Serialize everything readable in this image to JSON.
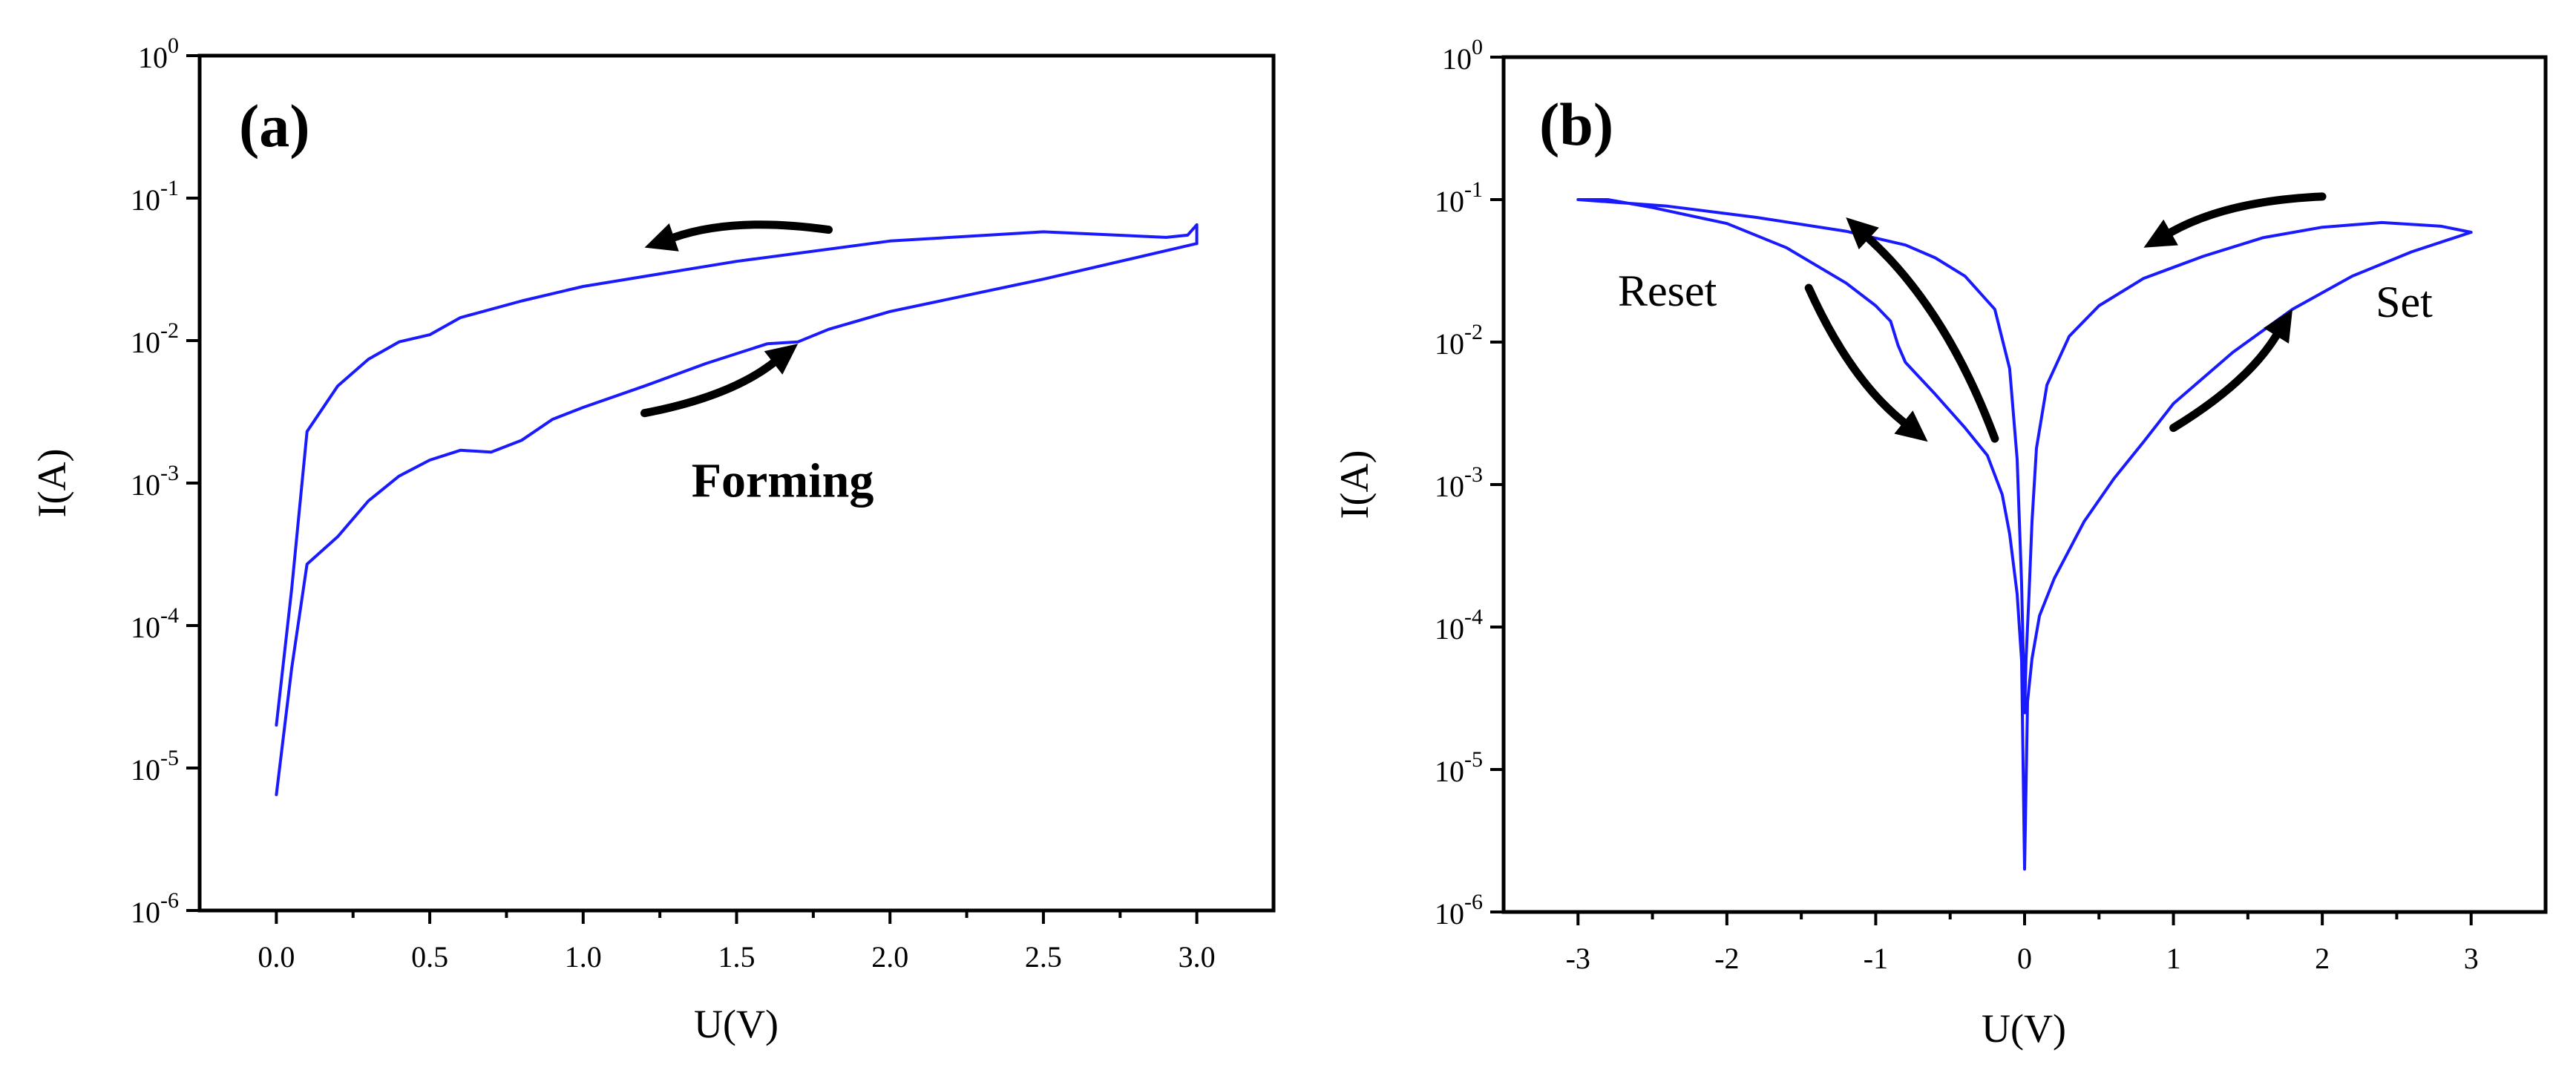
{
  "colors": {
    "curve": "#1a1aff",
    "axis": "#000000",
    "background": "#ffffff"
  },
  "chart_data": [
    {
      "id": "a",
      "type": "line",
      "panel_label": "(a)",
      "xlabel": "U(V)",
      "ylabel": "I(A)",
      "yscale": "log",
      "xlim": [
        -0.25,
        3.25
      ],
      "ylim": [
        1e-06,
        1
      ],
      "x_ticks": [
        0.0,
        0.5,
        1.0,
        1.5,
        2.0,
        2.5,
        3.0
      ],
      "x_tick_labels": [
        "0.0",
        "0.5",
        "1.0",
        "1.5",
        "2.0",
        "2.5",
        "3.0"
      ],
      "y_ticks": [
        {
          "value": 1,
          "base": "10",
          "exp": "0"
        },
        {
          "value": 0.1,
          "base": "10",
          "exp": "-1"
        },
        {
          "value": 0.01,
          "base": "10",
          "exp": "-2"
        },
        {
          "value": 0.001,
          "base": "10",
          "exp": "-3"
        },
        {
          "value": 0.0001,
          "base": "10",
          "exp": "-4"
        },
        {
          "value": 1e-05,
          "base": "10",
          "exp": "-5"
        },
        {
          "value": 1e-06,
          "base": "10",
          "exp": "-6"
        }
      ],
      "annotations": [
        {
          "text": "Forming",
          "x": 1.65,
          "y": 0.0008,
          "style": "bold"
        }
      ],
      "arrows": [
        {
          "name": "sweep-back-arrow",
          "from": [
            1.8,
            0.06
          ],
          "to": [
            1.2,
            0.045
          ]
        },
        {
          "name": "sweep-forward-arrow",
          "from": [
            1.2,
            0.0031
          ],
          "to": [
            1.7,
            0.0095
          ]
        }
      ],
      "series": [
        {
          "name": "forward sweep",
          "x": [
            0.0,
            0.05,
            0.1,
            0.2,
            0.3,
            0.4,
            0.5,
            0.6,
            0.7,
            0.8,
            0.9,
            1.0,
            1.2,
            1.4,
            1.6,
            1.7,
            1.8,
            2.0,
            2.5,
            3.0
          ],
          "y": [
            6.5e-06,
            5e-05,
            0.00027,
            0.00042,
            0.00075,
            0.00112,
            0.00145,
            0.0017,
            0.00165,
            0.002,
            0.0028,
            0.0034,
            0.0048,
            0.0069,
            0.0095,
            0.0098,
            0.012,
            0.016,
            0.027,
            0.048
          ]
        },
        {
          "name": "reverse sweep",
          "x": [
            3.0,
            3.0,
            2.97,
            2.9,
            2.5,
            2.0,
            1.5,
            1.0,
            0.8,
            0.6,
            0.5,
            0.4,
            0.3,
            0.2,
            0.1,
            0.05,
            0.0
          ],
          "y": [
            0.048,
            0.065,
            0.055,
            0.053,
            0.058,
            0.05,
            0.036,
            0.024,
            0.019,
            0.0145,
            0.011,
            0.0098,
            0.0074,
            0.0048,
            0.0023,
            0.00018,
            2e-05
          ]
        }
      ]
    },
    {
      "id": "b",
      "type": "line",
      "panel_label": "(b)",
      "xlabel": "U(V)",
      "ylabel": "I(A)",
      "yscale": "log",
      "xlim": [
        -3.5,
        3.5
      ],
      "ylim": [
        1e-06,
        1
      ],
      "x_ticks": [
        -3,
        -2,
        -1,
        0,
        1,
        2,
        3
      ],
      "x_tick_labels": [
        "-3",
        "-2",
        "-1",
        "0",
        "1",
        "2",
        "3"
      ],
      "y_ticks": [
        {
          "value": 1,
          "base": "10",
          "exp": "0"
        },
        {
          "value": 0.1,
          "base": "10",
          "exp": "-1"
        },
        {
          "value": 0.01,
          "base": "10",
          "exp": "-2"
        },
        {
          "value": 0.001,
          "base": "10",
          "exp": "-3"
        },
        {
          "value": 0.0001,
          "base": "10",
          "exp": "-4"
        },
        {
          "value": 1e-05,
          "base": "10",
          "exp": "-5"
        },
        {
          "value": 1e-06,
          "base": "10",
          "exp": "-6"
        }
      ],
      "annotations": [
        {
          "text": "Reset",
          "x": -2.4,
          "y": 0.018,
          "style": "normal"
        },
        {
          "text": "Set",
          "x": 2.55,
          "y": 0.015,
          "style": "normal"
        }
      ],
      "arrows": [
        {
          "name": "reset-arrow-up",
          "from": [
            -0.2,
            0.0021
          ],
          "to": [
            -1.2,
            0.075
          ]
        },
        {
          "name": "reset-arrow-down",
          "from": [
            -1.45,
            0.024
          ],
          "to": [
            -0.65,
            0.002
          ]
        },
        {
          "name": "set-arrow-up",
          "from": [
            1.0,
            0.0025
          ],
          "to": [
            1.8,
            0.017
          ]
        },
        {
          "name": "set-arrow-down",
          "from": [
            2.0,
            0.105
          ],
          "to": [
            0.8,
            0.046
          ]
        }
      ],
      "series": [
        {
          "name": "I-V loop",
          "x": [
            -3.0,
            -2.8,
            -2.5,
            -2.0,
            -1.6,
            -1.2,
            -1.0,
            -0.9,
            -0.85,
            -0.8,
            -0.6,
            -0.4,
            -0.25,
            -0.15,
            -0.1,
            -0.05,
            -0.02,
            0.0,
            0.02,
            0.05,
            0.1,
            0.2,
            0.4,
            0.6,
            0.8,
            1.0,
            1.4,
            1.8,
            2.2,
            2.6,
            3.0,
            2.8,
            2.4,
            2.0,
            1.6,
            1.2,
            0.8,
            0.5,
            0.3,
            0.15,
            0.08,
            0.05,
            0.03,
            0.01,
            0.0,
            -0.02,
            -0.05,
            -0.1,
            -0.2,
            -0.4,
            -0.6,
            -0.8,
            -1.2,
            -1.8,
            -2.4,
            -3.0
          ],
          "y": [
            0.1,
            0.1,
            0.088,
            0.068,
            0.046,
            0.026,
            0.018,
            0.014,
            0.0095,
            0.0072,
            0.0043,
            0.0025,
            0.0016,
            0.00085,
            0.00045,
            0.00017,
            5.8e-05,
            2e-06,
            3e-05,
            6e-05,
            0.00012,
            0.00022,
            0.00055,
            0.0011,
            0.002,
            0.0037,
            0.0085,
            0.017,
            0.029,
            0.043,
            0.059,
            0.065,
            0.069,
            0.064,
            0.054,
            0.04,
            0.028,
            0.018,
            0.011,
            0.005,
            0.0018,
            0.00055,
            0.00017,
            6e-05,
            2.5e-05,
            0.0002,
            0.0015,
            0.0065,
            0.017,
            0.029,
            0.039,
            0.048,
            0.06,
            0.075,
            0.09,
            0.1
          ]
        }
      ]
    }
  ]
}
